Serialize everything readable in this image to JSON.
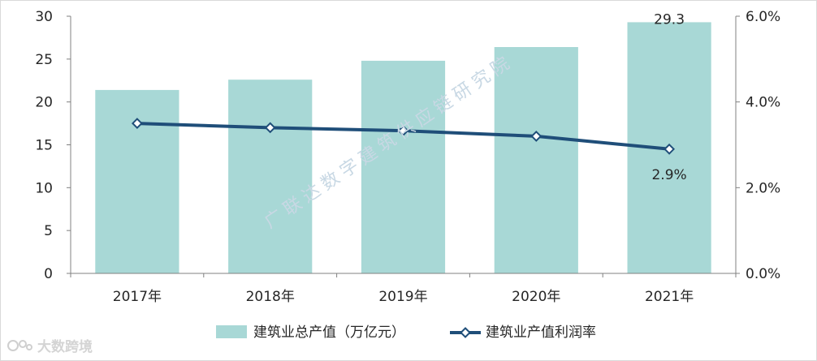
{
  "chart_data": {
    "type": "bar",
    "categories": [
      "2017年",
      "2018年",
      "2019年",
      "2020年",
      "2021年"
    ],
    "series": [
      {
        "name": "建筑业总产值（万亿元）",
        "type": "bar",
        "axis": "left",
        "values": [
          21.4,
          22.6,
          24.8,
          26.4,
          29.3
        ],
        "color": "#a8d8d6"
      },
      {
        "name": "建筑业产值利润率",
        "type": "line",
        "axis": "right",
        "values": [
          3.5,
          3.4,
          3.33,
          3.2,
          2.9
        ],
        "color": "#1f4e79"
      }
    ],
    "data_labels": [
      {
        "series": 0,
        "index": 4,
        "text": "29.3"
      },
      {
        "series": 1,
        "index": 4,
        "text": "2.9%"
      }
    ],
    "y_left": {
      "min": 0,
      "max": 30,
      "ticks": [
        "0",
        "5",
        "10",
        "15",
        "20",
        "25",
        "30"
      ]
    },
    "y_right": {
      "min": 0,
      "max": 6,
      "ticks": [
        "0.0%",
        "2.0%",
        "4.0%",
        "6.0%"
      ]
    },
    "legend_position": "bottom",
    "grid": false,
    "title": "",
    "xlabel": "",
    "ylabel": ""
  },
  "watermark": "广联达数字建筑供应链研究院",
  "logo": "大数跨境"
}
